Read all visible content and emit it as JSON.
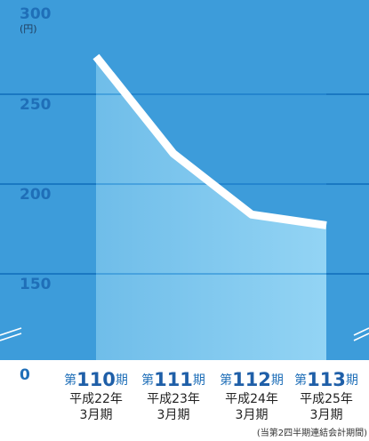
{
  "chart_data": {
    "type": "line",
    "unit": "(円)",
    "categories": [
      "110",
      "111",
      "112",
      "113"
    ],
    "category_prefix": "第",
    "category_suffix": "期",
    "sublabels": [
      [
        "平成22年",
        "3月期"
      ],
      [
        "平成23年",
        "3月期"
      ],
      [
        "平成24年",
        "3月期"
      ],
      [
        "平成25年",
        "3月期"
      ]
    ],
    "values": [
      271,
      217,
      183,
      177
    ],
    "color": "#ffffff",
    "ylim": [
      0,
      300
    ],
    "yticks": [
      0,
      150,
      200,
      250,
      300
    ],
    "axis_break": true,
    "grid": true,
    "footnote": "(当第2四半期連結会計期間)"
  }
}
